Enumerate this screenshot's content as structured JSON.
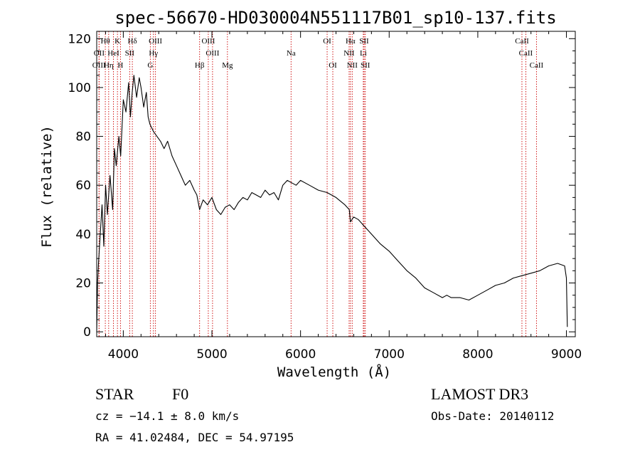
{
  "colors": {
    "ink": "#000000",
    "line_marker": "#cc0000",
    "background": "#ffffff"
  },
  "chart_data": {
    "type": "line",
    "title": "spec-56670-HD030004N551117B01_sp10-137.fits",
    "xlabel": "Wavelength (Å)",
    "ylabel": "Flux (relative)",
    "xlim": [
      3700,
      9100
    ],
    "ylim": [
      -2,
      123
    ],
    "x_ticks": [
      4000,
      5000,
      6000,
      7000,
      8000,
      9000
    ],
    "y_ticks": [
      0,
      20,
      40,
      60,
      80,
      100,
      120
    ],
    "x_tick_labels": [
      "4000",
      "5000",
      "6000",
      "7000",
      "8000",
      "9000"
    ],
    "y_tick_labels": [
      "0",
      "20",
      "40",
      "60",
      "80",
      "100",
      "120"
    ],
    "series": [
      {
        "name": "flux",
        "x": [
          3700,
          3710,
          3720,
          3740,
          3760,
          3780,
          3800,
          3820,
          3850,
          3880,
          3900,
          3920,
          3950,
          3970,
          4000,
          4030,
          4060,
          4080,
          4100,
          4120,
          4150,
          4180,
          4200,
          4230,
          4260,
          4280,
          4300,
          4340,
          4380,
          4420,
          4460,
          4500,
          4550,
          4600,
          4650,
          4700,
          4750,
          4800,
          4830,
          4861,
          4900,
          4950,
          5000,
          5050,
          5100,
          5150,
          5200,
          5250,
          5300,
          5350,
          5400,
          5450,
          5500,
          5550,
          5600,
          5650,
          5700,
          5750,
          5800,
          5850,
          5900,
          5950,
          6000,
          6100,
          6200,
          6300,
          6400,
          6500,
          6550,
          6563,
          6600,
          6650,
          6700,
          6800,
          6900,
          7000,
          7100,
          7200,
          7300,
          7400,
          7500,
          7600,
          7650,
          7700,
          7800,
          7900,
          8000,
          8100,
          8200,
          8300,
          8400,
          8500,
          8600,
          8700,
          8800,
          8900,
          8980,
          9000,
          9010
        ],
        "y": [
          0,
          20,
          28,
          40,
          52,
          35,
          60,
          48,
          64,
          50,
          75,
          68,
          80,
          72,
          95,
          90,
          102,
          88,
          98,
          105,
          96,
          104,
          100,
          92,
          98,
          88,
          85,
          82,
          80,
          78,
          75,
          78,
          72,
          68,
          64,
          60,
          62,
          58,
          56,
          50,
          54,
          52,
          55,
          50,
          48,
          51,
          52,
          50,
          53,
          55,
          54,
          57,
          56,
          55,
          58,
          56,
          57,
          54,
          60,
          62,
          61,
          60,
          62,
          60,
          58,
          57,
          55,
          52,
          50,
          45,
          47,
          46,
          44,
          40,
          36,
          33,
          29,
          25,
          22,
          18,
          16,
          14,
          15,
          14,
          14,
          13,
          15,
          17,
          19,
          20,
          22,
          23,
          24,
          25,
          27,
          28,
          27,
          22,
          2
        ]
      }
    ],
    "spectral_lines": [
      {
        "label": "Hθ",
        "x": 3797,
        "row": 1
      },
      {
        "label": "K",
        "x": 3934,
        "row": 1
      },
      {
        "label": "Hδ",
        "x": 4102,
        "row": 1
      },
      {
        "label": "OIII",
        "x": 4363,
        "row": 1
      },
      {
        "label": "OIII",
        "x": 4959,
        "row": 1
      },
      {
        "label": "OI",
        "x": 6300,
        "row": 1
      },
      {
        "label": "Hα",
        "x": 6563,
        "row": 1
      },
      {
        "label": "SII",
        "x": 6717,
        "row": 1
      },
      {
        "label": "CaII",
        "x": 8498,
        "row": 1
      },
      {
        "label": "OII",
        "x": 3727,
        "row": 2
      },
      {
        "label": "HeI",
        "x": 3889,
        "row": 2
      },
      {
        "label": "SII",
        "x": 4072,
        "row": 2
      },
      {
        "label": "Hγ",
        "x": 4340,
        "row": 2
      },
      {
        "label": "OIII",
        "x": 5007,
        "row": 2
      },
      {
        "label": "Na",
        "x": 5893,
        "row": 2
      },
      {
        "label": "NII",
        "x": 6548,
        "row": 2
      },
      {
        "label": "Li",
        "x": 6708,
        "row": 2
      },
      {
        "label": "CaII",
        "x": 8542,
        "row": 2
      },
      {
        "label": "OIII",
        "x": 3726,
        "row": 3
      },
      {
        "label": "Hη",
        "x": 3835,
        "row": 3
      },
      {
        "label": "H",
        "x": 3968,
        "row": 3
      },
      {
        "label": "G",
        "x": 4305,
        "row": 3
      },
      {
        "label": "Hβ",
        "x": 4861,
        "row": 3
      },
      {
        "label": "Mg",
        "x": 5175,
        "row": 3
      },
      {
        "label": "OI",
        "x": 6364,
        "row": 3
      },
      {
        "label": "NII",
        "x": 6583,
        "row": 3
      },
      {
        "label": "SII",
        "x": 6731,
        "row": 3
      },
      {
        "label": "CaII",
        "x": 8662,
        "row": 3
      }
    ]
  },
  "info": {
    "class_label": "STAR",
    "subclass": "F0",
    "survey": "LAMOST DR3",
    "cz": "cz = −14.1 ± 8.0 km/s",
    "obs_date": "Obs-Date: 20140112",
    "coords": "RA =  41.02484, DEC =  54.97195"
  }
}
